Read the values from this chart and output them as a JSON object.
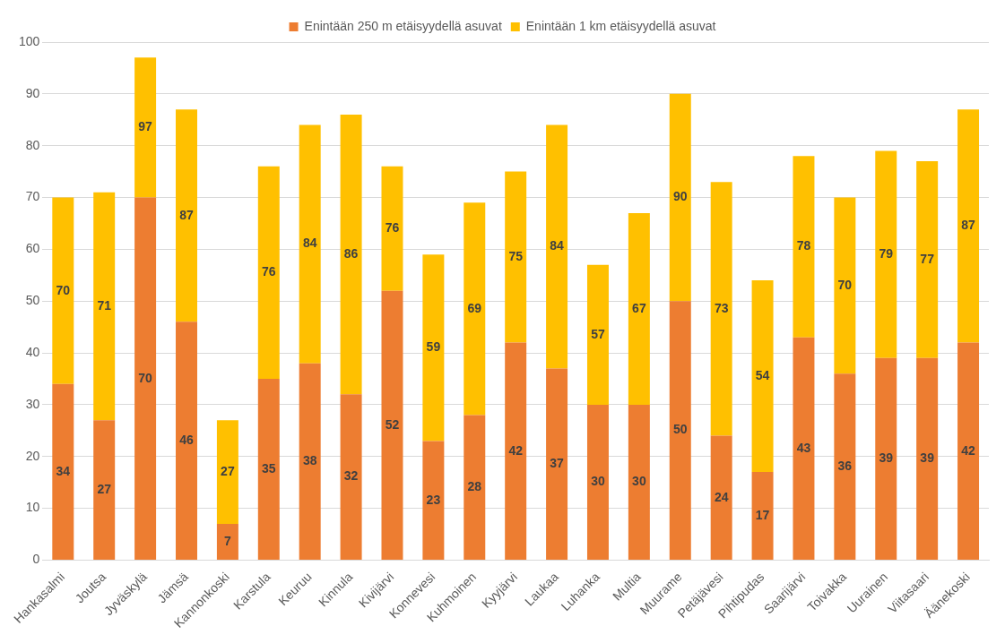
{
  "chart_data": {
    "type": "bar",
    "stacked": true,
    "categories": [
      "Hankasalmi",
      "Joutsa",
      "Jyväskylä",
      "Jämsä",
      "Kannonkoski",
      "Karstula",
      "Keuruu",
      "Kinnula",
      "Kivijärvi",
      "Konnevesi",
      "Kuhmoinen",
      "Kyyjärvi",
      "Laukaa",
      "Luhanka",
      "Multia",
      "Muurame",
      "Petäjävesi",
      "Pihtipudas",
      "Saarijärvi",
      "Toivakka",
      "Uurainen",
      "Viitasaari",
      "Äänekoski"
    ],
    "series": [
      {
        "name": "Enintään 250 m etäisyydellä asuvat",
        "color": "#ed7d31",
        "values": [
          34,
          27,
          70,
          46,
          7,
          35,
          38,
          32,
          52,
          23,
          28,
          42,
          37,
          30,
          30,
          50,
          24,
          17,
          43,
          36,
          39,
          39,
          42
        ],
        "value_labels": [
          "34",
          "27",
          "70",
          "46",
          "7",
          "35",
          "38",
          "32",
          "52",
          "23",
          "28",
          "42",
          "37",
          "30",
          "30",
          "50",
          "24",
          "17",
          "43",
          "36",
          "39",
          "39",
          "42"
        ]
      },
      {
        "name": "Enintään 1 km etäisyydellä asuvat",
        "color": "#ffc000",
        "values": [
          36,
          44,
          27,
          41,
          20,
          41,
          46,
          54,
          24,
          36,
          41,
          33,
          47,
          27,
          37,
          40,
          49,
          37,
          35,
          34,
          40,
          38,
          45
        ]
      }
    ],
    "totals": [
      "70",
      "71",
      "97",
      "87",
      "27",
      "76",
      "84",
      "86",
      "76",
      "59",
      "69",
      "75",
      "84",
      "57",
      "67",
      "90",
      "73",
      "54",
      "78",
      "70",
      "79",
      "77",
      "87"
    ],
    "ylim": [
      0,
      100
    ],
    "yticks": [
      0,
      10,
      20,
      30,
      40,
      50,
      60,
      70,
      80,
      90,
      100
    ],
    "grid": "y",
    "legend": "top"
  }
}
